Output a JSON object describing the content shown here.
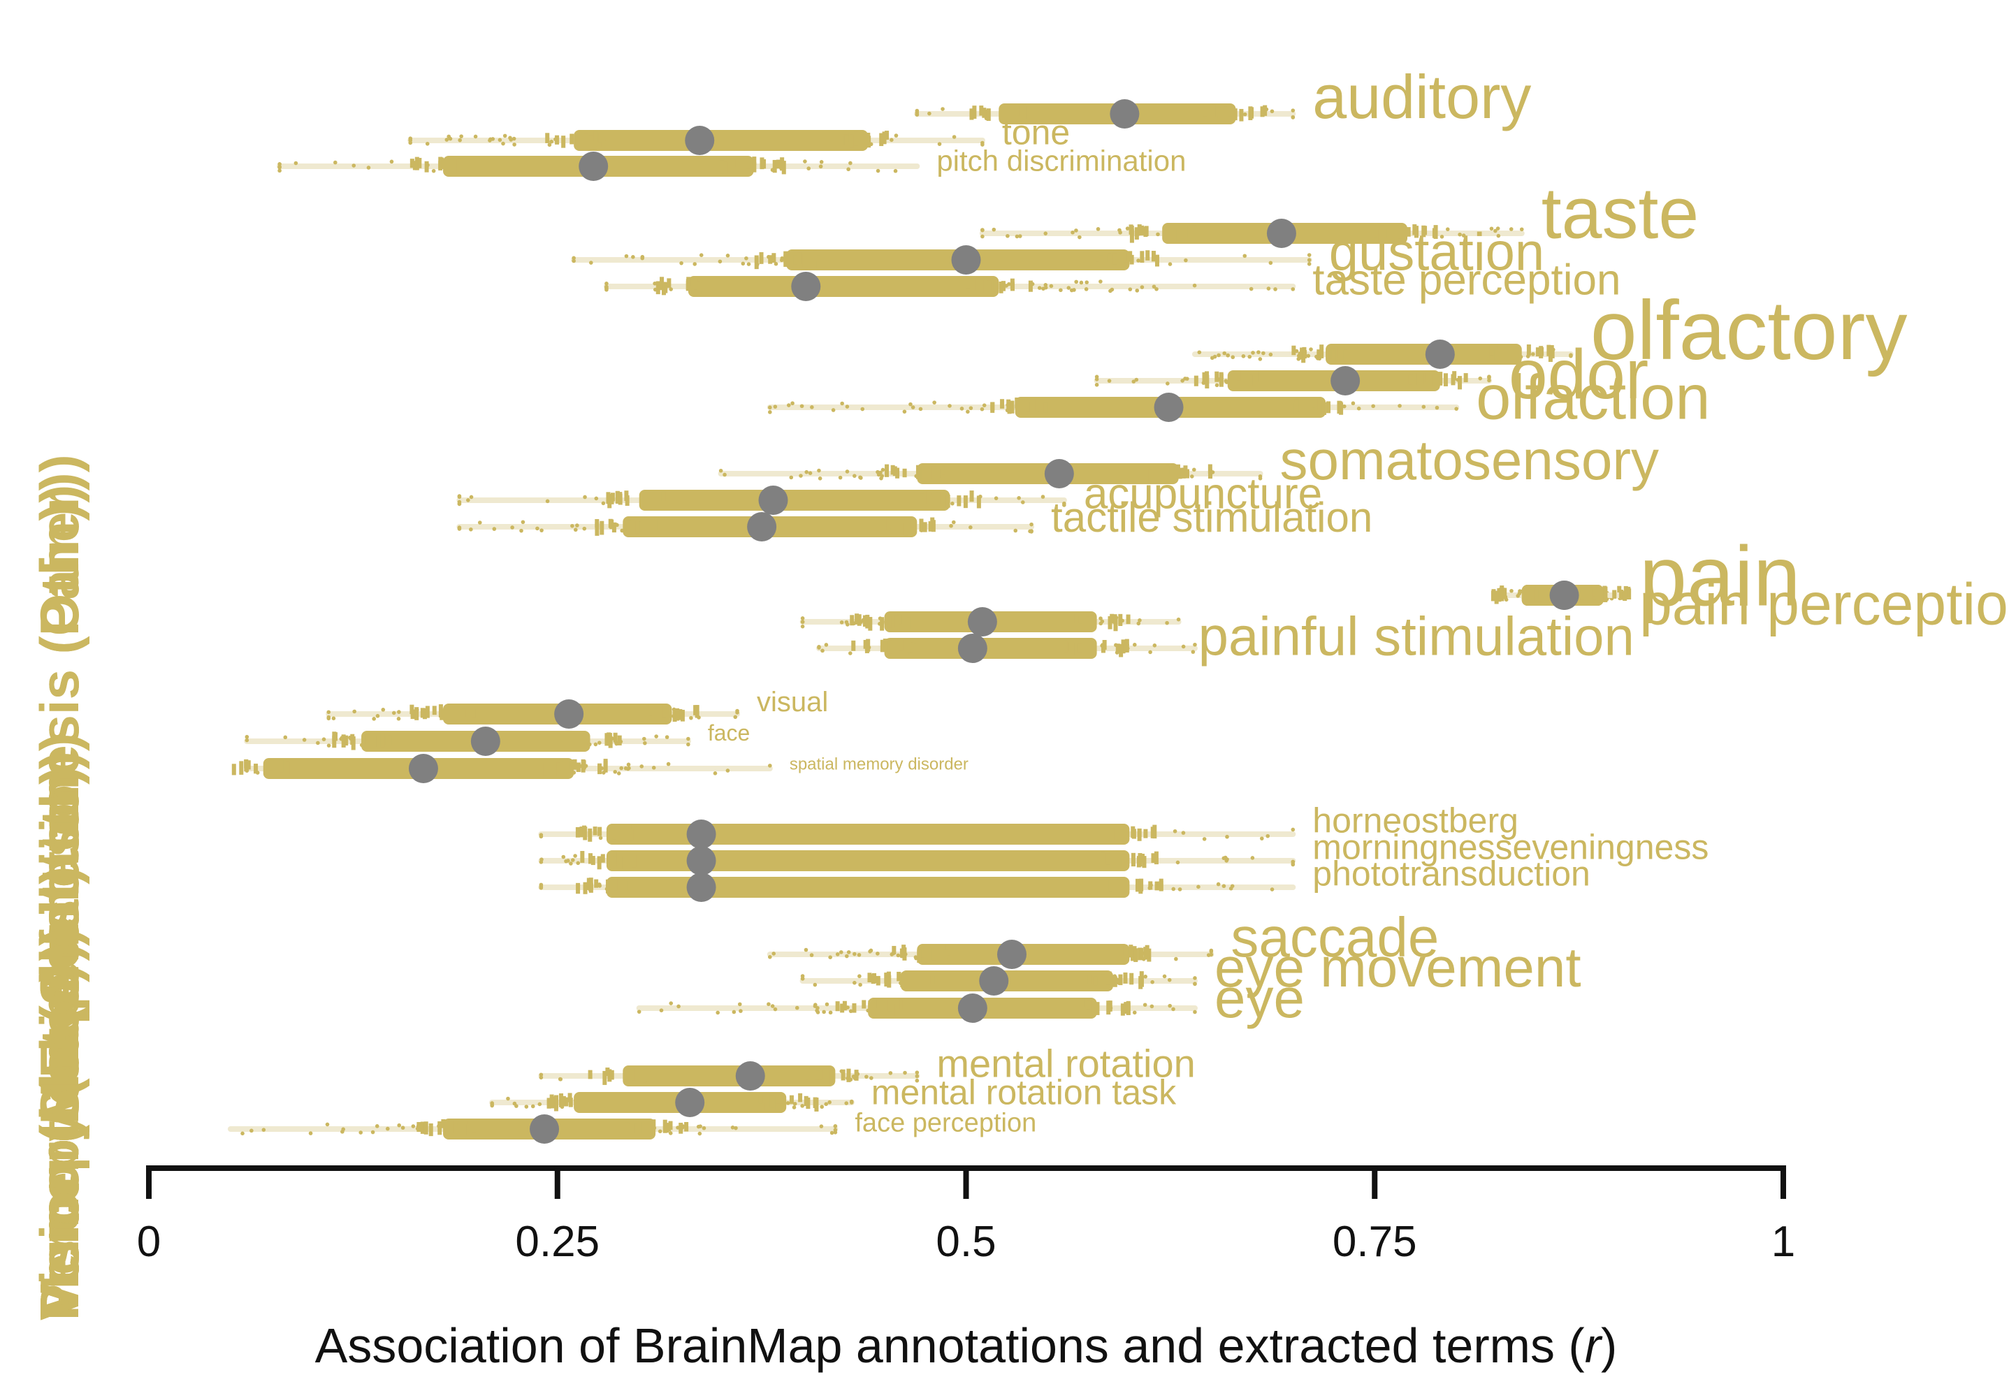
{
  "chart_data": {
    "type": "scatter",
    "xlabel_prefix": "Association of BrainMap annotations and extracted terms (",
    "xlabel_var": "r",
    "xlabel_suffix": ")",
    "xlim": [
      0,
      1
    ],
    "x_ticks": [
      0,
      0.25,
      0.5,
      0.75,
      1
    ],
    "x_tick_labels": [
      "0",
      "0.25",
      "0.5",
      "0.75",
      "1"
    ],
    "y_labels": [
      "Perception (Audition)",
      "Perception (Gustation)",
      "Perception (Olfaction)",
      "Perception (Somesthesis (Other))",
      "Perception (Somesthesis (Pain))",
      "Memory (Explicit)",
      "Vision (Color)",
      "Vision (Motion)",
      "Vision (Shape)"
    ],
    "colors": {
      "term": "#cbb760",
      "point": "#808080",
      "axis": "#111111",
      "whisker": "#efe9d0"
    },
    "groups": [
      {
        "terms": [
          {
            "label": "auditory",
            "r": 0.597,
            "lo": 0.47,
            "hi": 0.7,
            "q1": 0.52,
            "q3": 0.665,
            "size": 88
          },
          {
            "label": "tone",
            "r": 0.337,
            "lo": 0.16,
            "hi": 0.51,
            "q1": 0.26,
            "q3": 0.44,
            "size": 50
          },
          {
            "label": "pitch discrimination",
            "r": 0.272,
            "lo": 0.08,
            "hi": 0.47,
            "q1": 0.18,
            "q3": 0.37,
            "size": 42
          }
        ]
      },
      {
        "terms": [
          {
            "label": "taste",
            "r": 0.693,
            "lo": 0.51,
            "hi": 0.84,
            "q1": 0.62,
            "q3": 0.77,
            "size": 104
          },
          {
            "label": "gustation",
            "r": 0.5,
            "lo": 0.26,
            "hi": 0.71,
            "q1": 0.39,
            "q3": 0.6,
            "size": 76
          },
          {
            "label": "taste perception",
            "r": 0.402,
            "lo": 0.28,
            "hi": 0.7,
            "q1": 0.33,
            "q3": 0.52,
            "size": 62
          }
        ]
      },
      {
        "terms": [
          {
            "label": "olfactory",
            "r": 0.79,
            "lo": 0.64,
            "hi": 0.87,
            "q1": 0.72,
            "q3": 0.84,
            "size": 120
          },
          {
            "label": "odor",
            "r": 0.732,
            "lo": 0.58,
            "hi": 0.82,
            "q1": 0.66,
            "q3": 0.79,
            "size": 100
          },
          {
            "label": "olfaction",
            "r": 0.624,
            "lo": 0.38,
            "hi": 0.8,
            "q1": 0.53,
            "q3": 0.72,
            "size": 90
          }
        ]
      },
      {
        "terms": [
          {
            "label": "somatosensory",
            "r": 0.557,
            "lo": 0.35,
            "hi": 0.68,
            "q1": 0.47,
            "q3": 0.63,
            "size": 80
          },
          {
            "label": "acupuncture",
            "r": 0.382,
            "lo": 0.19,
            "hi": 0.56,
            "q1": 0.3,
            "q3": 0.49,
            "size": 62
          },
          {
            "label": "tactile stimulation",
            "r": 0.375,
            "lo": 0.19,
            "hi": 0.54,
            "q1": 0.29,
            "q3": 0.47,
            "size": 60
          }
        ]
      },
      {
        "terms": [
          {
            "label": "pain",
            "r": 0.866,
            "lo": 0.83,
            "hi": 0.9,
            "q1": 0.84,
            "q3": 0.89,
            "size": 122
          },
          {
            "label": "pain perception",
            "r": 0.866,
            "lo": 0.83,
            "hi": 0.9,
            "q1": 0.84,
            "q3": 0.89,
            "size": 84
          },
          {
            "label": "painful stimulation",
            "r": 0.51,
            "lo": 0.4,
            "hi": 0.63,
            "q1": 0.45,
            "q3": 0.58,
            "size": 78
          },
          {
            "label": "",
            "r": 0.504,
            "lo": 0.41,
            "hi": 0.64,
            "q1": 0.45,
            "q3": 0.58,
            "size": 0
          }
        ]
      },
      {
        "terms": [
          {
            "label": "visual",
            "r": 0.257,
            "lo": 0.11,
            "hi": 0.36,
            "q1": 0.18,
            "q3": 0.32,
            "size": 40
          },
          {
            "label": "face",
            "r": 0.206,
            "lo": 0.06,
            "hi": 0.33,
            "q1": 0.13,
            "q3": 0.27,
            "size": 32
          },
          {
            "label": "spatial memory disorder",
            "r": 0.168,
            "lo": 0.06,
            "hi": 0.38,
            "q1": 0.07,
            "q3": 0.26,
            "size": 24
          }
        ]
      },
      {
        "terms": [
          {
            "label": "horneostberg",
            "r": 0.338,
            "lo": 0.24,
            "hi": 0.7,
            "q1": 0.28,
            "q3": 0.6,
            "size": 50
          },
          {
            "label": "morningnesseveningness",
            "r": 0.338,
            "lo": 0.24,
            "hi": 0.7,
            "q1": 0.28,
            "q3": 0.6,
            "size": 50
          },
          {
            "label": "phototransduction",
            "r": 0.338,
            "lo": 0.24,
            "hi": 0.7,
            "q1": 0.28,
            "q3": 0.6,
            "size": 50
          }
        ]
      },
      {
        "terms": [
          {
            "label": "saccade",
            "r": 0.528,
            "lo": 0.38,
            "hi": 0.65,
            "q1": 0.47,
            "q3": 0.6,
            "size": 80
          },
          {
            "label": "eye movement",
            "r": 0.517,
            "lo": 0.4,
            "hi": 0.64,
            "q1": 0.46,
            "q3": 0.59,
            "size": 80
          },
          {
            "label": "eye",
            "r": 0.504,
            "lo": 0.3,
            "hi": 0.64,
            "q1": 0.44,
            "q3": 0.58,
            "size": 80
          }
        ]
      },
      {
        "terms": [
          {
            "label": "mental rotation",
            "r": 0.368,
            "lo": 0.24,
            "hi": 0.47,
            "q1": 0.29,
            "q3": 0.42,
            "size": 56
          },
          {
            "label": "mental rotation task",
            "r": 0.331,
            "lo": 0.21,
            "hi": 0.43,
            "q1": 0.26,
            "q3": 0.39,
            "size": 50
          },
          {
            "label": "face perception",
            "r": 0.242,
            "lo": 0.05,
            "hi": 0.42,
            "q1": 0.18,
            "q3": 0.31,
            "size": 38
          }
        ]
      }
    ]
  }
}
